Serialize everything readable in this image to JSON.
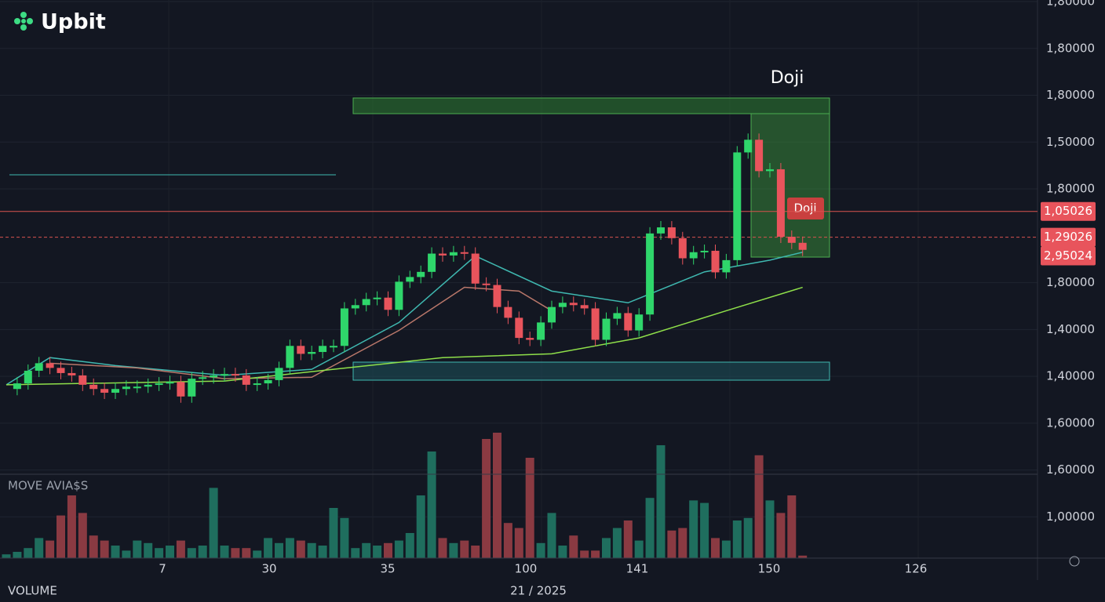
{
  "header": {
    "logo": "Upbit"
  },
  "chart_data": {
    "type": "candlestick",
    "close": [
      2.73,
      2.85,
      3.12,
      3.28,
      3.18,
      3.07,
      3.02,
      2.82,
      2.73,
      2.65,
      2.73,
      2.78,
      2.78,
      2.82,
      2.85,
      2.88,
      2.57,
      2.95,
      2.98,
      3.02,
      3.05,
      3.02,
      2.82,
      2.85,
      2.92,
      3.18,
      3.65,
      3.48,
      3.52,
      3.65,
      3.65,
      4.45,
      4.52,
      4.65,
      4.68,
      4.42,
      5.02,
      5.12,
      5.23,
      5.62,
      5.58,
      5.65,
      5.62,
      4.98,
      4.95,
      4.48,
      4.25,
      3.82,
      3.78,
      4.15,
      4.48,
      4.57,
      4.52,
      4.45,
      3.78,
      4.23,
      4.35,
      3.98,
      4.32,
      6.05,
      6.18,
      5.95,
      5.52,
      5.65,
      5.68,
      5.22,
      5.48,
      7.78,
      8.05,
      7.38,
      7.42,
      5.98,
      5.85,
      5.7
    ],
    "volume": [
      3,
      5,
      8,
      16,
      14,
      34,
      50,
      36,
      18,
      14,
      10,
      6,
      14,
      12,
      8,
      10,
      14,
      8,
      10,
      56,
      10,
      8,
      8,
      6,
      16,
      12,
      16,
      14,
      12,
      10,
      40,
      32,
      8,
      12,
      10,
      12,
      14,
      20,
      50,
      85,
      16,
      12,
      14,
      10,
      95,
      100,
      28,
      24,
      80,
      12,
      36,
      10,
      18,
      6,
      6,
      16,
      24,
      30,
      14,
      48,
      90,
      22,
      24,
      46,
      44,
      16,
      14,
      30,
      32,
      82,
      46,
      36,
      50,
      2
    ],
    "moving_averages": [
      {
        "color": "#3fb8b0",
        "x": [
          0,
          4,
          10,
          20,
          28,
          36,
          43,
          50,
          57,
          64,
          70,
          73
        ],
        "values": [
          2.82,
          3.4,
          3.23,
          3.02,
          3.15,
          4.15,
          5.57,
          4.82,
          4.57,
          5.23,
          5.48,
          5.65
        ]
      },
      {
        "color": "#b9776a",
        "x": [
          4,
          12,
          20,
          28,
          36,
          42,
          47,
          50
        ],
        "values": [
          3.28,
          3.18,
          2.95,
          2.98,
          3.98,
          4.9,
          4.82,
          4.4
        ]
      },
      {
        "color": "#8fe04a",
        "x": [
          0,
          20,
          30,
          40,
          50,
          58,
          66,
          73
        ],
        "values": [
          2.82,
          2.9,
          3.15,
          3.4,
          3.48,
          3.82,
          4.4,
          4.9
        ]
      }
    ],
    "ylim": [
      -0.88,
      11.05
    ],
    "yticks": [
      {
        "value": 11,
        "label": "1,80000"
      },
      {
        "value": 10,
        "label": "1,80000"
      },
      {
        "value": 9,
        "label": "1,80000"
      },
      {
        "value": 8,
        "label": "1,50000"
      },
      {
        "value": 7,
        "label": "1,80000"
      },
      {
        "value": 5,
        "label": "1,80000"
      },
      {
        "value": 4,
        "label": "1,40000"
      },
      {
        "value": 3,
        "label": "1,40000"
      },
      {
        "value": 2,
        "label": "1,60000"
      },
      {
        "value": 1,
        "label": "1,60000"
      },
      {
        "value": 0,
        "label": "1,00000"
      }
    ],
    "price_tags": [
      {
        "value": 6.52,
        "label": "1,05026"
      },
      {
        "value": 5.97,
        "label": "1,29026"
      },
      {
        "value": 5.57,
        "label": "2,95024"
      }
    ],
    "xticks": [
      "7",
      "30",
      "35",
      "100",
      "141",
      "150",
      "126"
    ],
    "date_label": "21 / 2025",
    "annotations": [
      "Doji",
      "Doji"
    ],
    "panel_label": "MOVE AVIA$S",
    "volume_label": "VOLUME"
  }
}
